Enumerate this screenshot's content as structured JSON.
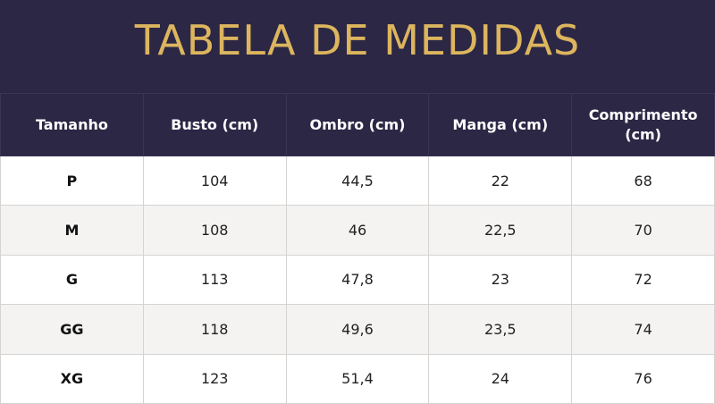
{
  "title": "TABELA DE MEDIDAS",
  "columns": [
    "Tamanho",
    "Busto (cm)",
    "Ombro (cm)",
    "Manga (cm)",
    "Comprimento (cm)"
  ],
  "rows": [
    {
      "size": "P",
      "busto": "104",
      "ombro": "44,5",
      "manga": "22",
      "comprimento": "68"
    },
    {
      "size": "M",
      "busto": "108",
      "ombro": "46",
      "manga": "22,5",
      "comprimento": "70"
    },
    {
      "size": "G",
      "busto": "113",
      "ombro": "47,8",
      "manga": "23",
      "comprimento": "72"
    },
    {
      "size": "GG",
      "busto": "118",
      "ombro": "49,6",
      "manga": "23,5",
      "comprimento": "74"
    },
    {
      "size": "XG",
      "busto": "123",
      "ombro": "51,4",
      "manga": "24",
      "comprimento": "76"
    }
  ],
  "colors": {
    "header_bg": "#2c2745",
    "title": "#dcb55e",
    "stripe": "#f4f3f2"
  }
}
